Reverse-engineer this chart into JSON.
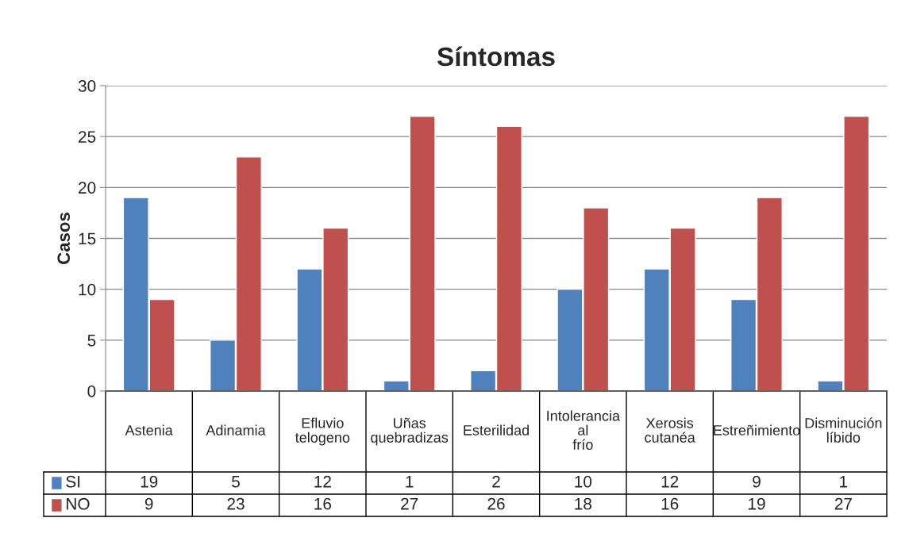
{
  "chart_data": {
    "type": "bar",
    "title": "Síntomas",
    "ylabel": "Casos",
    "categories": [
      "Astenia",
      "Adinamia",
      "Efluvio telogeno",
      "Uñas quebradizas",
      "Esterilidad",
      "Intolerancia al frío",
      "Xerosis cutanéa",
      "Estreñimiento",
      "Disminución líbido"
    ],
    "series": [
      {
        "name": "SI",
        "color": "#4f81bd",
        "values": [
          19,
          5,
          12,
          1,
          2,
          10,
          12,
          9,
          1
        ]
      },
      {
        "name": "NO",
        "color": "#c0504d",
        "values": [
          9,
          23,
          16,
          27,
          26,
          18,
          16,
          19,
          27
        ]
      }
    ],
    "ylim": [
      0,
      30
    ],
    "yticks": [
      0,
      5,
      10,
      15,
      20,
      25,
      30
    ],
    "grid": "y",
    "legend": "bottom",
    "data_labels": true
  }
}
